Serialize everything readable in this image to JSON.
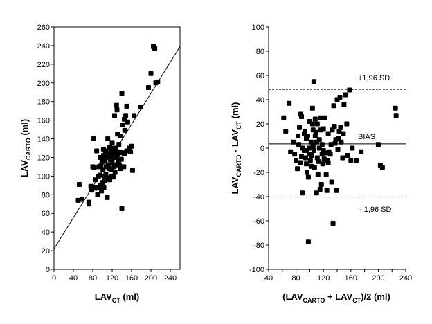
{
  "chart_data": [
    {
      "type": "scatter",
      "xlabel": {
        "main": "LAV",
        "sub": "CT",
        "tail": " (ml)"
      },
      "ylabel": {
        "main": "LAV",
        "sub": "CARTO",
        "tail": " (ml)"
      },
      "xlim": [
        0,
        260
      ],
      "ylim": [
        0,
        260
      ],
      "xticks": [
        0,
        40,
        80,
        120,
        160,
        200,
        240
      ],
      "yticks": [
        0,
        20,
        40,
        60,
        80,
        100,
        120,
        140,
        160,
        180,
        200,
        220,
        240,
        260
      ],
      "regression_line": {
        "x1": 0,
        "y1": 22,
        "x2": 260,
        "y2": 239
      },
      "points": [
        [
          50,
          74
        ],
        [
          52,
          91
        ],
        [
          58,
          75
        ],
        [
          72,
          72
        ],
        [
          72,
          70
        ],
        [
          76,
          89
        ],
        [
          78,
          85
        ],
        [
          80,
          110
        ],
        [
          82,
          140
        ],
        [
          83,
          109
        ],
        [
          84,
          88
        ],
        [
          85,
          96
        ],
        [
          86,
          87
        ],
        [
          88,
          127
        ],
        [
          90,
          80
        ],
        [
          91,
          88
        ],
        [
          92,
          100
        ],
        [
          93,
          110
        ],
        [
          94,
          88
        ],
        [
          95,
          101
        ],
        [
          95,
          120
        ],
        [
          96,
          90
        ],
        [
          97,
          111
        ],
        [
          98,
          84
        ],
        [
          99,
          115
        ],
        [
          100,
          118
        ],
        [
          100,
          93
        ],
        [
          101,
          107
        ],
        [
          102,
          122
        ],
        [
          102,
          129
        ],
        [
          103,
          88
        ],
        [
          104,
          100
        ],
        [
          105,
          95
        ],
        [
          105,
          116
        ],
        [
          106,
          127
        ],
        [
          107,
          102
        ],
        [
          108,
          110
        ],
        [
          108,
          120
        ],
        [
          110,
          77
        ],
        [
          110,
          98
        ],
        [
          111,
          140
        ],
        [
          112,
          124
        ],
        [
          112,
          112
        ],
        [
          113,
          125
        ],
        [
          114,
          108
        ],
        [
          115,
          96
        ],
        [
          115,
          131
        ],
        [
          116,
          118
        ],
        [
          117,
          122
        ],
        [
          118,
          100
        ],
        [
          118,
          127
        ],
        [
          119,
          107
        ],
        [
          120,
          115
        ],
        [
          120,
          136
        ],
        [
          121,
          125
        ],
        [
          122,
          99
        ],
        [
          122,
          130
        ],
        [
          124,
          110
        ],
        [
          124,
          120
        ],
        [
          125,
          165
        ],
        [
          126,
          104
        ],
        [
          126,
          126
        ],
        [
          128,
          112
        ],
        [
          128,
          130
        ],
        [
          129,
          176
        ],
        [
          130,
          121
        ],
        [
          130,
          171
        ],
        [
          131,
          145
        ],
        [
          132,
          116
        ],
        [
          132,
          124
        ],
        [
          134,
          117
        ],
        [
          134,
          134
        ],
        [
          135,
          112
        ],
        [
          136,
          126
        ],
        [
          137,
          108
        ],
        [
          138,
          143
        ],
        [
          139,
          118
        ],
        [
          140,
          65
        ],
        [
          140,
          189
        ],
        [
          142,
          155
        ],
        [
          142,
          125
        ],
        [
          144,
          110
        ],
        [
          145,
          161
        ],
        [
          145,
          124
        ],
        [
          146,
          149
        ],
        [
          148,
          165
        ],
        [
          150,
          127
        ],
        [
          150,
          175
        ],
        [
          152,
          158
        ],
        [
          155,
          130
        ],
        [
          158,
          126
        ],
        [
          160,
          132
        ],
        [
          162,
          106
        ],
        [
          165,
          165
        ],
        [
          178,
          174
        ],
        [
          195,
          195
        ],
        [
          200,
          210
        ],
        [
          205,
          239
        ],
        [
          208,
          237
        ],
        [
          210,
          200
        ],
        [
          214,
          201
        ]
      ]
    },
    {
      "type": "scatter",
      "xlabel": {
        "pre": "(LAV",
        "sub1": "CARTO",
        "mid": " + LAV",
        "sub2": "CT",
        "tail": ")/2 (ml)"
      },
      "ylabel": {
        "main": "LAV",
        "sub1": "CARTO",
        "mid": " - LAV",
        "sub2": "CT",
        "tail": " (ml)"
      },
      "xlim": [
        40,
        240
      ],
      "ylim": [
        -100,
        100
      ],
      "xticks": [
        40,
        60,
        80,
        100,
        120,
        140,
        160,
        180,
        200,
        220,
        240
      ],
      "yticks": [
        -100,
        -80,
        -60,
        -40,
        -20,
        0,
        20,
        40,
        60,
        80,
        100
      ],
      "bias": 3.5,
      "upper_loa": 48.5,
      "lower_loa": -42,
      "annotations": {
        "upper": "+1,96 SD",
        "bias": "BIAS",
        "lower": "- 1,96 SD"
      },
      "points": [
        [
          62,
          25
        ],
        [
          65,
          14
        ],
        [
          70,
          37
        ],
        [
          72,
          -3
        ],
        [
          76,
          5
        ],
        [
          78,
          -5
        ],
        [
          80,
          -10
        ],
        [
          82,
          -17
        ],
        [
          83,
          10
        ],
        [
          84,
          3
        ],
        [
          85,
          17
        ],
        [
          86,
          -12
        ],
        [
          87,
          28
        ],
        [
          88,
          26
        ],
        [
          88,
          -7
        ],
        [
          89,
          -37
        ],
        [
          90,
          0
        ],
        [
          92,
          -2
        ],
        [
          92,
          12
        ],
        [
          93,
          14
        ],
        [
          94,
          -8
        ],
        [
          95,
          8
        ],
        [
          95,
          -13
        ],
        [
          96,
          -2
        ],
        [
          96,
          -20
        ],
        [
          97,
          10
        ],
        [
          98,
          -24
        ],
        [
          98,
          -77
        ],
        [
          99,
          0
        ],
        [
          100,
          -5
        ],
        [
          100,
          22
        ],
        [
          101,
          -10
        ],
        [
          102,
          5
        ],
        [
          102,
          -15
        ],
        [
          103,
          -6
        ],
        [
          104,
          20
        ],
        [
          104,
          33
        ],
        [
          105,
          15
        ],
        [
          105,
          2
        ],
        [
          106,
          -2
        ],
        [
          106,
          55
        ],
        [
          107,
          -16
        ],
        [
          108,
          24
        ],
        [
          108,
          10
        ],
        [
          109,
          13
        ],
        [
          110,
          5
        ],
        [
          110,
          -37
        ],
        [
          111,
          20
        ],
        [
          111,
          -8
        ],
        [
          112,
          -22
        ],
        [
          113,
          -11
        ],
        [
          114,
          7
        ],
        [
          114,
          0
        ],
        [
          115,
          -34
        ],
        [
          116,
          25
        ],
        [
          116,
          15
        ],
        [
          117,
          -30
        ],
        [
          118,
          -5
        ],
        [
          118,
          3
        ],
        [
          119,
          -13
        ],
        [
          120,
          -2
        ],
        [
          120,
          16
        ],
        [
          121,
          -9
        ],
        [
          122,
          25
        ],
        [
          123,
          -4
        ],
        [
          124,
          -22
        ],
        [
          125,
          -35
        ],
        [
          126,
          -10
        ],
        [
          127,
          -12
        ],
        [
          127,
          12
        ],
        [
          128,
          -3
        ],
        [
          130,
          -5
        ],
        [
          131,
          3
        ],
        [
          132,
          -28
        ],
        [
          133,
          15
        ],
        [
          134,
          -62
        ],
        [
          135,
          35
        ],
        [
          136,
          18
        ],
        [
          137,
          4
        ],
        [
          138,
          7
        ],
        [
          139,
          -35
        ],
        [
          140,
          40
        ],
        [
          141,
          -1
        ],
        [
          142,
          8
        ],
        [
          143,
          14
        ],
        [
          144,
          42
        ],
        [
          145,
          17
        ],
        [
          146,
          5
        ],
        [
          148,
          -8
        ],
        [
          149,
          12
        ],
        [
          150,
          36
        ],
        [
          152,
          44
        ],
        [
          154,
          20
        ],
        [
          155,
          -6
        ],
        [
          158,
          48
        ],
        [
          160,
          -10
        ],
        [
          162,
          0
        ],
        [
          168,
          -10
        ],
        [
          175,
          -3
        ],
        [
          200,
          3
        ],
        [
          203,
          -14
        ],
        [
          206,
          -16
        ],
        [
          225,
          33
        ],
        [
          226,
          27
        ]
      ]
    }
  ]
}
